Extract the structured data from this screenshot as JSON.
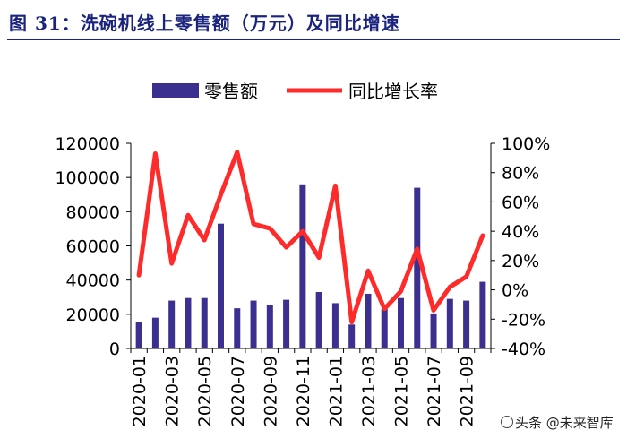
{
  "header": {
    "title": "图 31：洗碗机线上零售额（万元）及同比增速"
  },
  "watermark": {
    "text": "头条 @未来智库"
  },
  "colors": {
    "bar": "#3b2f8f",
    "line": "#ff2a2a",
    "title": "#1a237e",
    "axis": "#000000"
  },
  "chart_data": {
    "type": "bar+line",
    "title": "洗碗机线上零售额（万元）及同比增速",
    "categories": [
      "2020-01",
      "2020-02",
      "2020-03",
      "2020-04",
      "2020-05",
      "2020-06",
      "2020-07",
      "2020-08",
      "2020-09",
      "2020-10",
      "2020-11",
      "2020-12",
      "2021-01",
      "2021-02",
      "2021-03",
      "2021-04",
      "2021-05",
      "2021-06",
      "2021-07",
      "2021-08",
      "2021-09",
      "2021-10"
    ],
    "x_tick_labels": [
      "2020-01",
      "2020-03",
      "2020-05",
      "2020-07",
      "2020-09",
      "2020-11",
      "2021-01",
      "2021-03",
      "2021-05",
      "2021-07",
      "2021-09"
    ],
    "series": [
      {
        "name": "零售额",
        "type": "bar",
        "axis": "left",
        "values": [
          15500,
          18000,
          28000,
          29500,
          29500,
          73000,
          23500,
          28000,
          25500,
          28500,
          96000,
          33000,
          26500,
          14000,
          32000,
          23000,
          29500,
          94000,
          20500,
          29000,
          28000,
          39000
        ]
      },
      {
        "name": "同比增长率",
        "type": "line",
        "axis": "right",
        "unit": "%",
        "values": [
          10,
          93,
          18,
          51,
          34,
          65,
          94,
          45,
          42,
          29,
          40,
          22,
          71,
          -22,
          13,
          -13,
          -1,
          28,
          -14,
          2,
          9,
          37
        ]
      }
    ],
    "left_axis": {
      "ylim": [
        0,
        120000
      ],
      "ticks": [
        "0",
        "20000",
        "40000",
        "60000",
        "80000",
        "100000",
        "120000"
      ]
    },
    "right_axis": {
      "ylim": [
        -40,
        100
      ],
      "ticks": [
        "-40%",
        "-20%",
        "0%",
        "20%",
        "40%",
        "60%",
        "80%",
        "100%"
      ]
    },
    "legend": {
      "position": "top-center",
      "entries": [
        "零售额",
        "同比增长率"
      ]
    }
  }
}
